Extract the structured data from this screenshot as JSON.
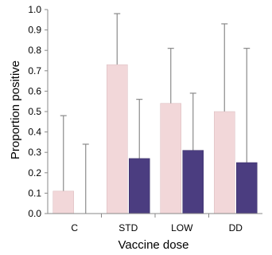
{
  "chart_data": {
    "type": "bar",
    "title": "",
    "xlabel": "Vaccine dose",
    "ylabel": "Proportion positive",
    "categories": [
      "C",
      "STD",
      "LOW",
      "DD"
    ],
    "ylim": [
      0,
      1.0
    ],
    "yticks": [
      "0.0",
      "0.1",
      "0.2",
      "0.3",
      "0.4",
      "0.5",
      "0.6",
      "0.7",
      "0.8",
      "0.9",
      "1.0"
    ],
    "grid": false,
    "legend": "none",
    "series": [
      {
        "color": "#f2d7d9",
        "values": [
          0.11,
          0.73,
          0.54,
          0.5
        ],
        "error_upper": [
          0.48,
          0.98,
          0.81,
          0.93
        ]
      },
      {
        "color": "#4b3d80",
        "values": [
          0.0,
          0.27,
          0.31,
          0.25
        ],
        "error_upper": [
          0.34,
          0.56,
          0.59,
          0.81
        ]
      }
    ]
  }
}
